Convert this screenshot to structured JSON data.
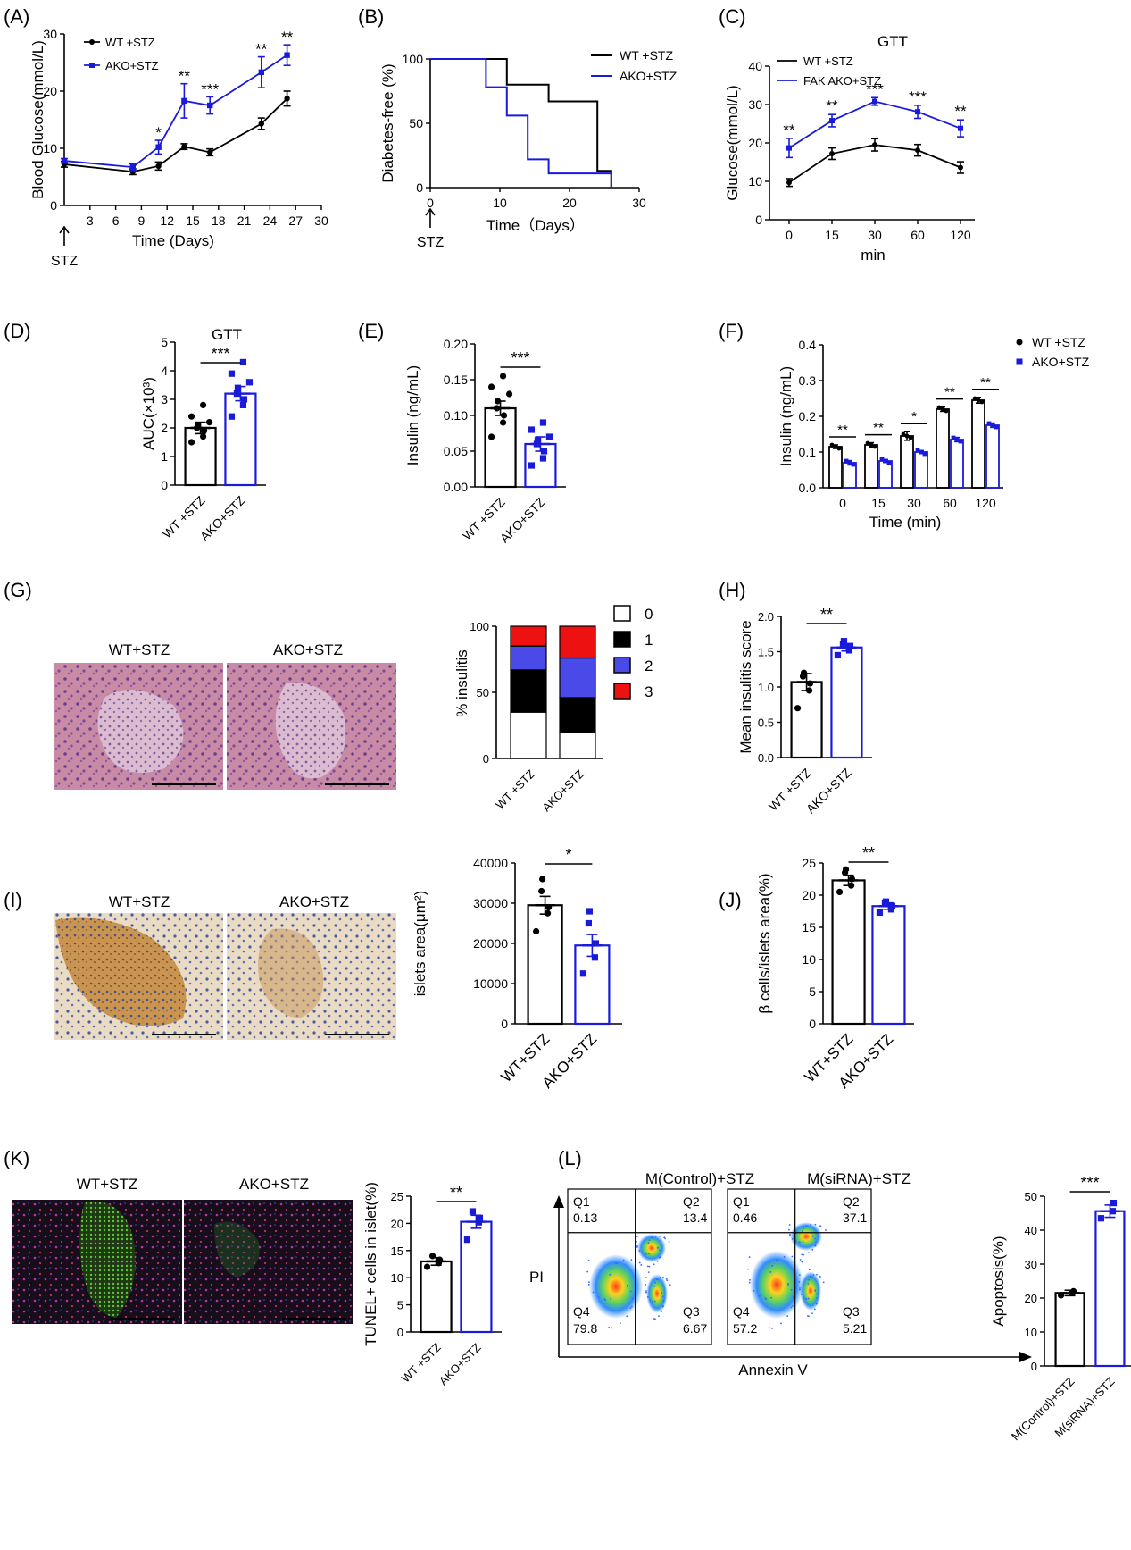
{
  "colors": {
    "wt": "#000000",
    "ako": "#1a1adb",
    "score0": "#ffffff",
    "score1": "#000000",
    "score2": "#4a4ae8",
    "score3": "#ee1111"
  },
  "panels": {
    "A": {
      "letter": "(A)",
      "xlabel": "Time (Days)",
      "ylabel": "Blood Glucose(mmol/L)",
      "arrow_label": "STZ",
      "legend": [
        "WT +STZ",
        "AKO+STZ"
      ],
      "chart_data": {
        "type": "line",
        "x": [
          0,
          8,
          11,
          14,
          17,
          23,
          26
        ],
        "series": [
          {
            "name": "WT +STZ",
            "values": [
              7.2,
              5.9,
              6.9,
              10.3,
              9.3,
              14.3,
              18.7
            ],
            "err": [
              0.5,
              0.5,
              0.7,
              0.5,
              0.6,
              1.0,
              1.3
            ]
          },
          {
            "name": "AKO+STZ",
            "values": [
              7.8,
              6.7,
              10.2,
              18.3,
              17.5,
              23.3,
              26.3
            ],
            "err": [
              0.4,
              0.6,
              1.2,
              3.0,
              1.5,
              2.7,
              1.8
            ]
          }
        ],
        "sig": [
          "",
          "",
          "*",
          "**",
          "***",
          "**",
          "**"
        ],
        "xlim": [
          0,
          30
        ],
        "ylim": [
          0,
          30
        ],
        "xticks": [
          3,
          6,
          9,
          12,
          15,
          18,
          21,
          24,
          27,
          30
        ],
        "yticks": [
          0,
          10,
          20,
          30
        ]
      }
    },
    "B": {
      "letter": "(B)",
      "xlabel": "Time（Days）",
      "ylabel": "Diabetes-free (%)",
      "arrow_label": "STZ",
      "legend": [
        "WT +STZ",
        "AKO+STZ"
      ],
      "chart_data": {
        "type": "line",
        "series": [
          {
            "name": "WT +STZ",
            "steps": [
              [
                0,
                100
              ],
              [
                11,
                80
              ],
              [
                17,
                67
              ],
              [
                24,
                13
              ],
              [
                26,
                0
              ]
            ]
          },
          {
            "name": "AKO+STZ",
            "steps": [
              [
                0,
                100
              ],
              [
                8,
                78
              ],
              [
                11,
                56
              ],
              [
                14,
                22
              ],
              [
                17,
                11
              ],
              [
                26,
                0
              ]
            ]
          }
        ],
        "xlim": [
          0,
          30
        ],
        "ylim": [
          0,
          100
        ],
        "xticks": [
          0,
          10,
          20,
          30
        ],
        "yticks": [
          0,
          50,
          100
        ]
      }
    },
    "C": {
      "letter": "(C)",
      "title": "GTT",
      "xlabel": "min",
      "ylabel": "Glucose(mmol/L)",
      "legend": [
        "WT +STZ",
        "FAK AKO+STZ"
      ],
      "chart_data": {
        "type": "line",
        "categories": [
          "0",
          "15",
          "30",
          "60",
          "120"
        ],
        "series": [
          {
            "name": "WT +STZ",
            "values": [
              9.7,
              17.2,
              19.5,
              18.1,
              13.6
            ],
            "err": [
              1.0,
              1.5,
              1.6,
              1.5,
              1.5
            ]
          },
          {
            "name": "FAK AKO+STZ",
            "values": [
              18.7,
              25.8,
              30.8,
              28.1,
              23.8
            ],
            "err": [
              2.5,
              1.6,
              1.0,
              1.7,
              2.2
            ]
          }
        ],
        "sig": [
          "**",
          "**",
          "***",
          "***",
          "**"
        ],
        "ylim": [
          0,
          40
        ],
        "yticks": [
          0,
          10,
          20,
          30,
          40
        ]
      }
    },
    "D": {
      "letter": "(D)",
      "title": "GTT",
      "ylabel": "AUC(×10³)",
      "chart_data": {
        "type": "bar",
        "categories": [
          "WT +STZ",
          "AKO+STZ"
        ],
        "values": [
          2.0,
          3.2
        ],
        "err": [
          0.2,
          0.25
        ],
        "points": [
          [
            1.5,
            1.7,
            1.9,
            2.0,
            2.1,
            2.2,
            2.4,
            2.8
          ],
          [
            2.4,
            2.8,
            3.0,
            3.2,
            3.4,
            3.6,
            3.9,
            4.3
          ]
        ],
        "sig": "***",
        "ylim": [
          0,
          5
        ],
        "yticks": [
          0,
          1,
          2,
          3,
          4,
          5
        ]
      }
    },
    "E": {
      "letter": "(E)",
      "ylabel": "Insulin (ng/mL)",
      "chart_data": {
        "type": "bar",
        "categories": [
          "WT +STZ",
          "AKO+STZ"
        ],
        "values": [
          0.11,
          0.06
        ],
        "err": [
          0.01,
          0.01
        ],
        "points": [
          [
            0.07,
            0.09,
            0.1,
            0.11,
            0.12,
            0.13,
            0.14,
            0.155
          ],
          [
            0.03,
            0.04,
            0.05,
            0.06,
            0.065,
            0.07,
            0.08,
            0.09
          ]
        ],
        "sig": "***",
        "ylim": [
          0,
          0.2
        ],
        "yticks": [
          0.0,
          0.05,
          0.1,
          0.15,
          0.2
        ]
      }
    },
    "F": {
      "letter": "(F)",
      "xlabel": "Time (min)",
      "ylabel": "Insulin (ng/mL)",
      "legend": [
        "WT +STZ",
        "AKO+STZ"
      ],
      "chart_data": {
        "type": "bar",
        "categories": [
          "0",
          "15",
          "30",
          "60",
          "120"
        ],
        "series": [
          {
            "name": "WT +STZ",
            "values": [
              0.115,
              0.12,
              0.145,
              0.22,
              0.245
            ],
            "err": [
              0.005,
              0.006,
              0.012,
              0.006,
              0.008
            ]
          },
          {
            "name": "AKO+STZ",
            "values": [
              0.07,
              0.075,
              0.1,
              0.135,
              0.175
            ],
            "err": [
              0.006,
              0.004,
              0.004,
              0.006,
              0.006
            ]
          }
        ],
        "sig": [
          "**",
          "**",
          "*",
          "**",
          "**"
        ],
        "ylim": [
          0,
          0.4
        ],
        "yticks": [
          0.0,
          0.1,
          0.2,
          0.3,
          0.4
        ]
      }
    },
    "G": {
      "letter": "(G)",
      "labels": [
        "WT+STZ",
        "AKO+STZ"
      ],
      "ylabel": "% insulitis",
      "legend": [
        "0",
        "1",
        "2",
        "3"
      ],
      "chart_data": {
        "type": "bar",
        "categories": [
          "WT +STZ",
          "AKO+STZ"
        ],
        "series": [
          {
            "name": "0",
            "values": [
              35,
              20
            ]
          },
          {
            "name": "1",
            "values": [
              32,
              26
            ]
          },
          {
            "name": "2",
            "values": [
              18,
              30
            ]
          },
          {
            "name": "3",
            "values": [
              15,
              24
            ]
          }
        ],
        "ylim": [
          0,
          100
        ],
        "yticks": [
          0,
          50,
          100
        ]
      }
    },
    "H": {
      "letter": "(H)",
      "ylabel": "Mean insulitis score",
      "chart_data": {
        "type": "bar",
        "categories": [
          "WT +STZ",
          "AKO+STZ"
        ],
        "values": [
          1.07,
          1.56
        ],
        "err": [
          0.12,
          0.05
        ],
        "points": [
          [
            0.7,
            0.95,
            1.05,
            1.15,
            1.2
          ],
          [
            1.45,
            1.52,
            1.58,
            1.6,
            1.65
          ]
        ],
        "sig": "**",
        "ylim": [
          0,
          2.0
        ],
        "yticks": [
          0.0,
          0.5,
          1.0,
          1.5,
          2.0
        ]
      }
    },
    "I": {
      "letter": "(I)",
      "labels": [
        "WT+STZ",
        "AKO+STZ"
      ],
      "ylabel": "islets area(μm²)",
      "chart_data": {
        "type": "bar",
        "categories": [
          "WT+STZ",
          "AKO+STZ"
        ],
        "values": [
          29500,
          19500
        ],
        "err": [
          2200,
          2700
        ],
        "points": [
          [
            23000,
            27500,
            29000,
            33000,
            36000
          ],
          [
            12500,
            16500,
            20000,
            25000,
            28000
          ]
        ],
        "sig": "*",
        "ylim": [
          0,
          40000
        ],
        "yticks": [
          0,
          10000,
          20000,
          30000,
          40000
        ]
      }
    },
    "J": {
      "letter": "(J)",
      "ylabel": "β cells/islets area(%)",
      "chart_data": {
        "type": "bar",
        "categories": [
          "WT+STZ",
          "AKO+STZ"
        ],
        "values": [
          22.3,
          18.3
        ],
        "err": [
          0.8,
          0.5
        ],
        "points": [
          [
            20.5,
            21.5,
            22.5,
            23.5,
            24.0
          ],
          [
            17.3,
            17.8,
            18.3,
            18.8,
            19.0
          ]
        ],
        "sig": "**",
        "ylim": [
          0,
          25
        ],
        "yticks": [
          0,
          5,
          10,
          15,
          20,
          25
        ]
      }
    },
    "K": {
      "letter": "(K)",
      "labels": [
        "WT+STZ",
        "AKO+STZ"
      ],
      "ylabel": "TUNEL+ cells in islet(%)",
      "chart_data": {
        "type": "bar",
        "categories": [
          "WT +STZ",
          "AKO+STZ"
        ],
        "values": [
          13.0,
          20.3
        ],
        "err": [
          0.7,
          1.2
        ],
        "points": [
          [
            12.0,
            12.7,
            13.3,
            14.0
          ],
          [
            17.0,
            20.2,
            21.0,
            22.2
          ]
        ],
        "sig": "**",
        "ylim": [
          0,
          25
        ],
        "yticks": [
          0,
          5,
          10,
          15,
          20,
          25
        ]
      }
    },
    "L": {
      "letter": "(L)",
      "labels": [
        "M(Control)+STZ",
        "M(siRNA)+STZ"
      ],
      "ylabel_flow": "PI",
      "xlabel_flow": "Annexin V",
      "ylabel": "Apoptosis(%)",
      "quadrants": [
        {
          "Q1": "Q1",
          "v1": "0.13",
          "Q2": "Q2",
          "v2": "13.4",
          "Q3": "Q3",
          "v3": "6.67",
          "Q4": "Q4",
          "v4": "79.8"
        },
        {
          "Q1": "Q1",
          "v1": "0.46",
          "Q2": "Q2",
          "v2": "37.1",
          "Q3": "Q3",
          "v3": "5.21",
          "Q4": "Q4",
          "v4": "57.2"
        }
      ],
      "chart_data": {
        "type": "bar",
        "categories": [
          "M(Control)+STZ",
          "M(siRNA)+STZ"
        ],
        "values": [
          21.5,
          45.6
        ],
        "err": [
          0.8,
          1.8
        ],
        "points": [
          [
            20.8,
            21.5,
            22.0
          ],
          [
            43.5,
            45.6,
            48.0
          ]
        ],
        "sig": "***",
        "ylim": [
          0,
          50
        ],
        "yticks": [
          0,
          10,
          20,
          30,
          40,
          50
        ]
      }
    }
  }
}
